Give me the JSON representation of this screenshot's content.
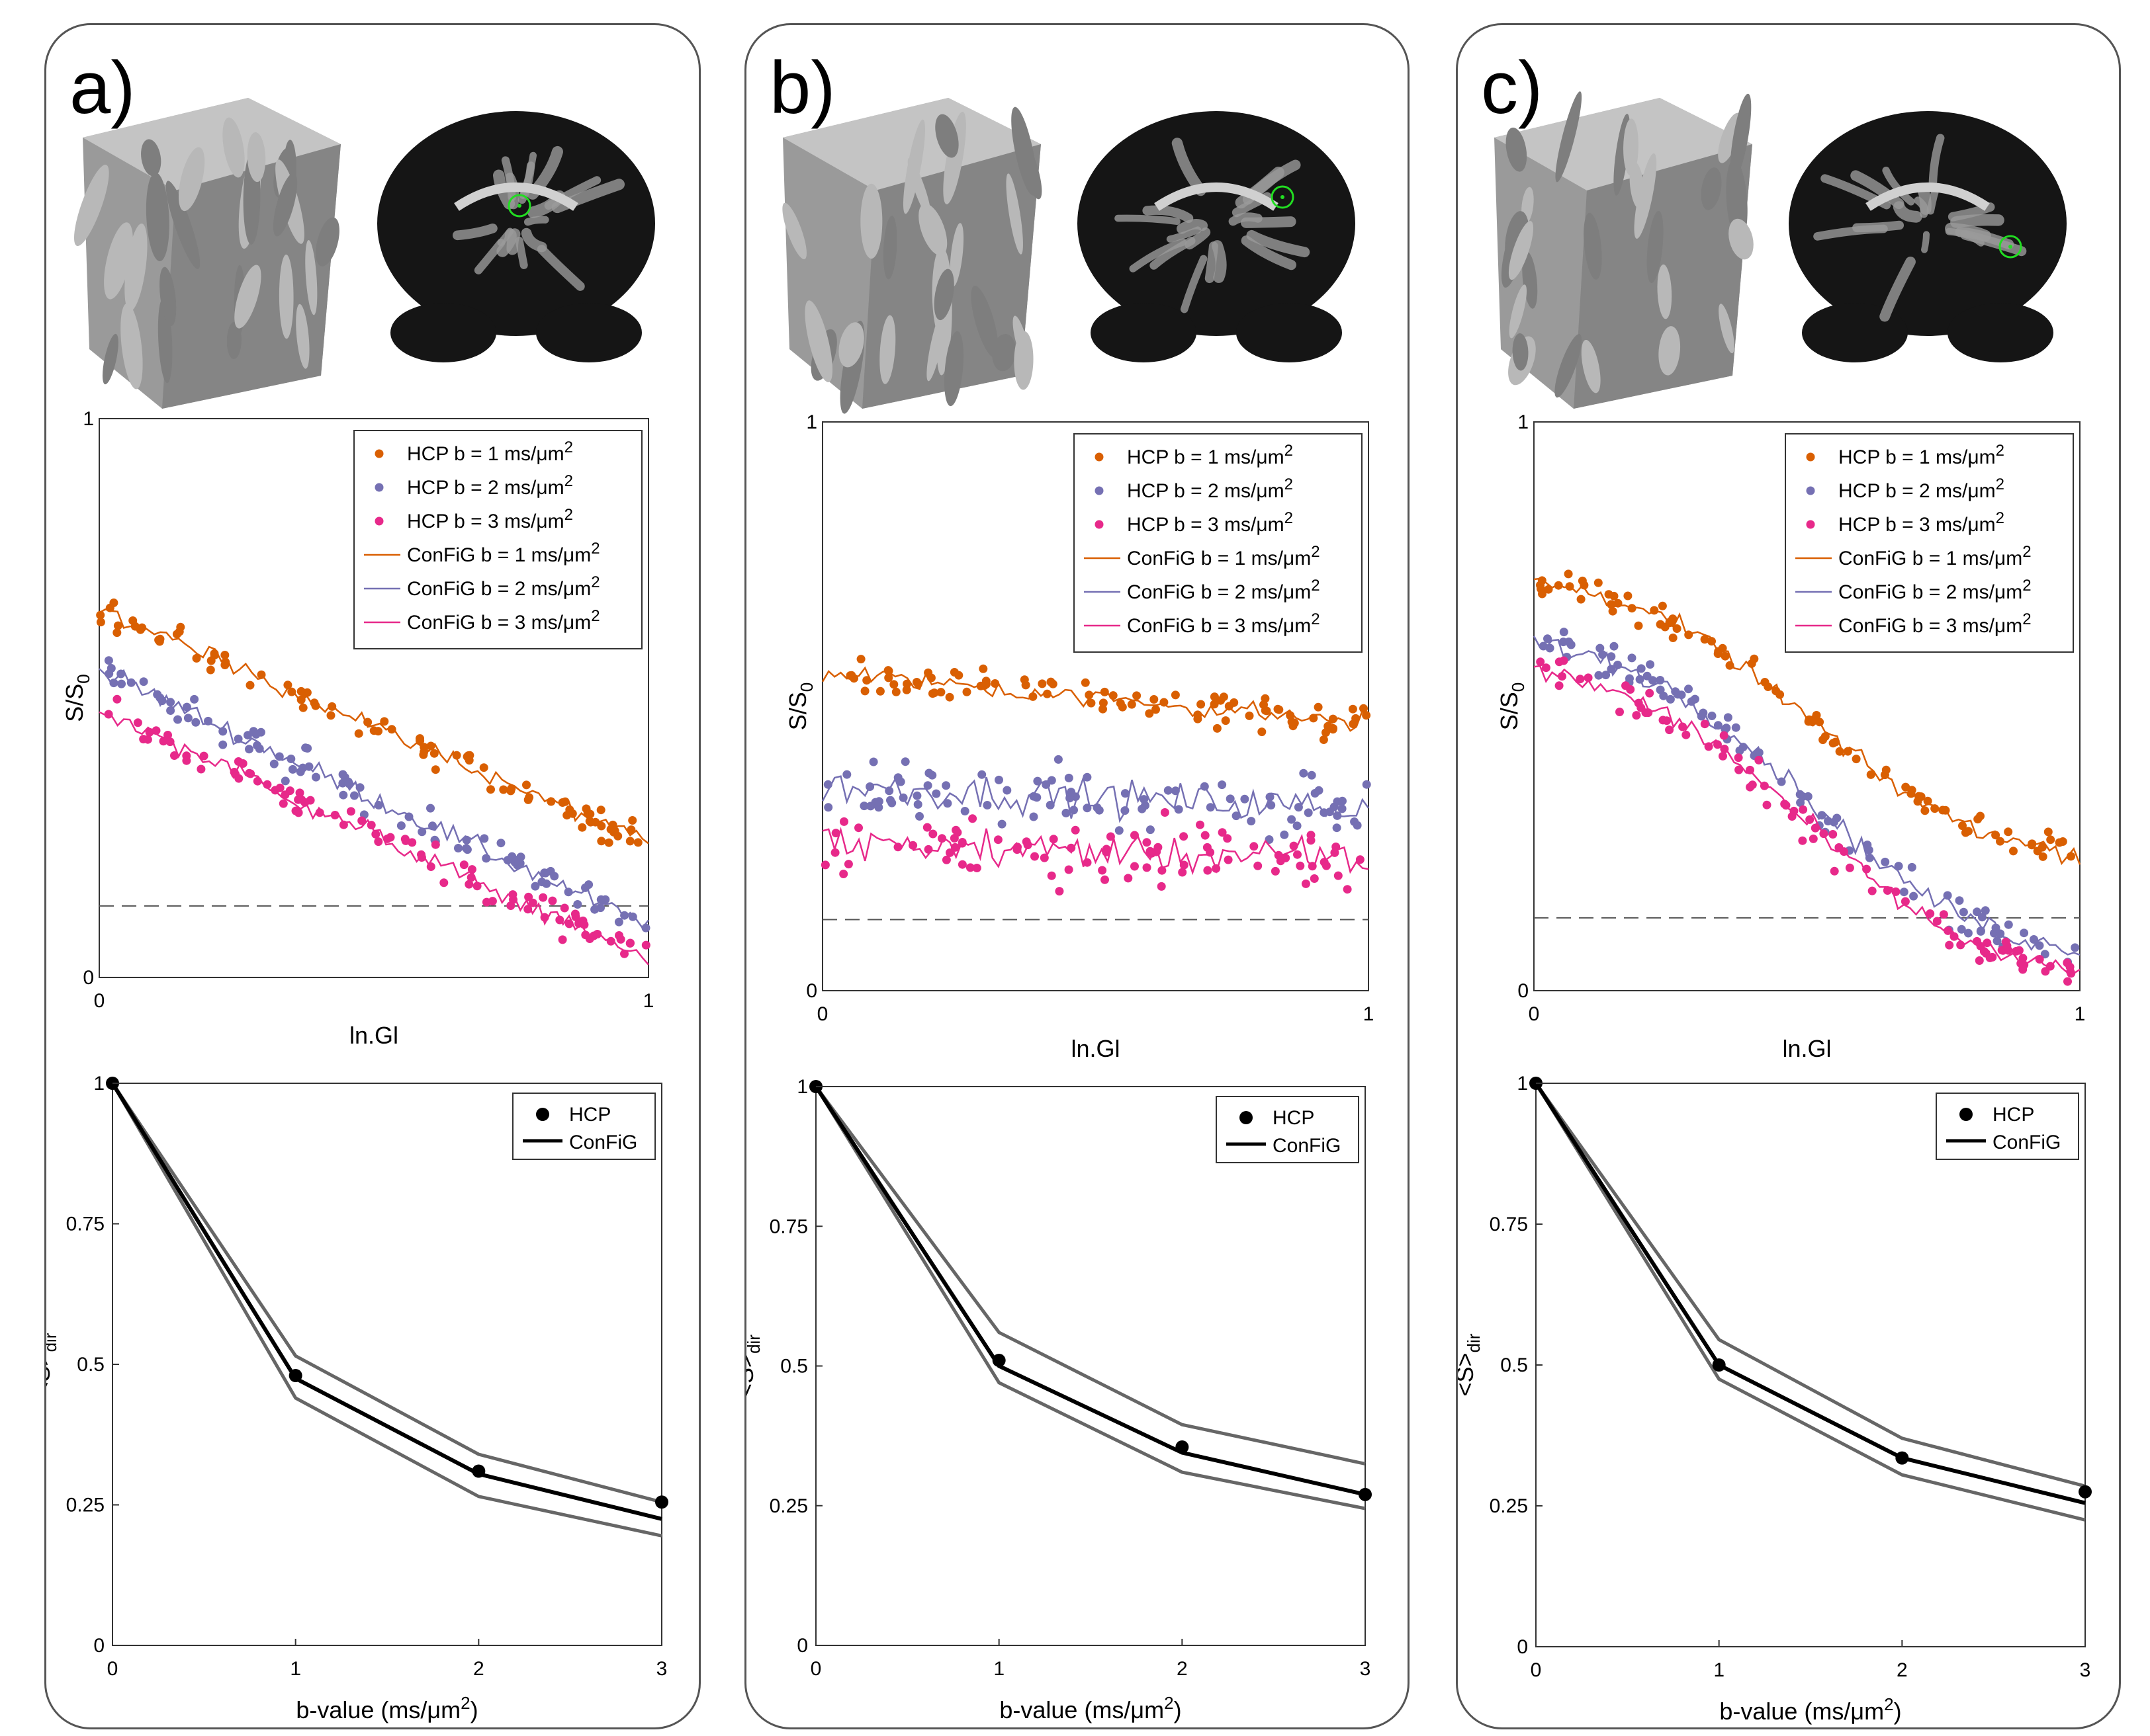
{
  "colors": {
    "orange": "#d95f02",
    "purple": "#7570b3",
    "pink": "#e7298a",
    "black": "#000000",
    "gray": "#666666"
  },
  "panels": [
    {
      "label": "a)",
      "icons": [
        "fiber-substrate-icon",
        "coronal-brain-slice-icon"
      ],
      "signal_scatter": {
        "ylabel": "S/S0",
        "xlabel": "ln.Gl",
        "xtick_left": "0",
        "xtick_right": "1",
        "ytick_bottom": "0",
        "ytick_top": "1",
        "noise_floor": 0.128,
        "legend": [
          "HCP b = 1 ms/μm²",
          "HCP b = 2 ms/μm²",
          "HCP b = 3 ms/μm²",
          "ConFiG b = 1 ms/μm²",
          "ConFiG b = 2 ms/μm²",
          "ConFiG b = 3 ms/μm²"
        ],
        "curves": {
          "b1": [
            0.66,
            0.24
          ],
          "b2": [
            0.55,
            0.09
          ],
          "b3": [
            0.48,
            0.03
          ]
        },
        "shape": "decay"
      },
      "mean_signal": {
        "ylabel": "<S>dir",
        "xlabel": "b-value (ms/μm²)",
        "xticks": [
          "0",
          "1",
          "2",
          "3"
        ],
        "yticks": [
          "0",
          "0.25",
          "0.5",
          "0.75",
          "1"
        ],
        "legend": [
          "HCP",
          "ConFiG"
        ],
        "hcp": [
          1.0,
          0.48,
          0.31,
          0.255
        ],
        "config": [
          1.0,
          0.475,
          0.305,
          0.225
        ],
        "upper": [
          1.0,
          0.515,
          0.34,
          0.255
        ],
        "lower": [
          1.0,
          0.44,
          0.265,
          0.195
        ]
      }
    },
    {
      "label": "b)",
      "icons": [
        "fiber-substrate-icon",
        "coronal-brain-slice-icon"
      ],
      "signal_scatter": {
        "ylabel": "S/S0",
        "xlabel": "ln.Gl",
        "xtick_left": "0",
        "xtick_right": "1",
        "ytick_bottom": "0",
        "ytick_top": "1",
        "noise_floor": 0.125,
        "legend": [
          "HCP b = 1 ms/μm²",
          "HCP b = 2 ms/μm²",
          "HCP b = 3 ms/μm²",
          "ConFiG b = 1 ms/μm²",
          "ConFiG b = 2 ms/μm²",
          "ConFiG b = 3 ms/μm²"
        ],
        "curves": {
          "b1": [
            0.56,
            0.47
          ],
          "b2": [
            0.36,
            0.32
          ],
          "b3": [
            0.26,
            0.23
          ]
        },
        "shape": "flat"
      },
      "mean_signal": {
        "ylabel": "<S>dir",
        "xlabel": "b-value (ms/μm²)",
        "xticks": [
          "0",
          "1",
          "2",
          "3"
        ],
        "yticks": [
          "0",
          "0.25",
          "0.5",
          "0.75",
          "1"
        ],
        "legend": [
          "HCP",
          "ConFiG"
        ],
        "hcp": [
          1.0,
          0.51,
          0.355,
          0.27
        ],
        "config": [
          1.0,
          0.5,
          0.345,
          0.27
        ],
        "upper": [
          1.0,
          0.56,
          0.395,
          0.325
        ],
        "lower": [
          1.0,
          0.47,
          0.31,
          0.245
        ]
      }
    },
    {
      "label": "c)",
      "icons": [
        "fiber-substrate-icon",
        "coronal-brain-slice-icon"
      ],
      "signal_scatter": {
        "ylabel": "S/S0",
        "xlabel": "ln.Gl",
        "xtick_left": "0",
        "xtick_right": "1",
        "ytick_bottom": "0",
        "ytick_top": "1",
        "noise_floor": 0.128,
        "legend": [
          "HCP b = 1 ms/μm²",
          "HCP b = 2 ms/μm²",
          "HCP b = 3 ms/μm²",
          "ConFiG b = 1 ms/μm²",
          "ConFiG b = 2 ms/μm²",
          "ConFiG b = 3 ms/μm²"
        ],
        "curves": {
          "b1": [
            0.72,
            0.24
          ],
          "b2": [
            0.61,
            0.07
          ],
          "b3": [
            0.56,
            0.03
          ]
        },
        "shape": "sigmoid"
      },
      "mean_signal": {
        "ylabel": "<S>dir",
        "xlabel": "b-value (ms/μm²)",
        "xticks": [
          "0",
          "1",
          "2",
          "3"
        ],
        "yticks": [
          "0",
          "0.25",
          "0.5",
          "0.75",
          "1"
        ],
        "legend": [
          "HCP",
          "ConFiG"
        ],
        "hcp": [
          1.0,
          0.5,
          0.335,
          0.275
        ],
        "config": [
          1.0,
          0.5,
          0.335,
          0.255
        ],
        "upper": [
          1.0,
          0.545,
          0.37,
          0.285
        ],
        "lower": [
          1.0,
          0.475,
          0.305,
          0.225
        ]
      }
    }
  ],
  "chart_data": [
    {
      "type": "scatter",
      "panel": "a)",
      "xlabel": "ln.Gl",
      "ylabel": "S/S0",
      "xlim": [
        0,
        1
      ],
      "ylim": [
        0,
        1
      ],
      "series": [
        {
          "name": "HCP b = 1 ms/μm²"
        },
        {
          "name": "HCP b = 2 ms/μm²"
        },
        {
          "name": "HCP b = 3 ms/μm²"
        },
        {
          "name": "ConFiG b = 1 ms/μm²",
          "x": [
            0,
            1
          ],
          "values": [
            0.66,
            0.24
          ]
        },
        {
          "name": "ConFiG b = 2 ms/μm²",
          "x": [
            0,
            1
          ],
          "values": [
            0.55,
            0.09
          ]
        },
        {
          "name": "ConFiG b = 3 ms/μm²",
          "x": [
            0,
            1
          ],
          "values": [
            0.48,
            0.03
          ]
        }
      ]
    },
    {
      "type": "line",
      "panel": "a)",
      "xlabel": "b-value (ms/μm²)",
      "ylabel": "<S>dir",
      "x": [
        0,
        1,
        2,
        3
      ],
      "ylim": [
        0,
        1
      ],
      "series": [
        {
          "name": "HCP",
          "values": [
            1.0,
            0.48,
            0.31,
            0.255
          ]
        },
        {
          "name": "ConFiG",
          "values": [
            1.0,
            0.475,
            0.305,
            0.225
          ]
        }
      ]
    },
    {
      "type": "scatter",
      "panel": "b)",
      "xlabel": "ln.Gl",
      "ylabel": "S/S0",
      "xlim": [
        0,
        1
      ],
      "ylim": [
        0,
        1
      ],
      "series": [
        {
          "name": "HCP b = 1 ms/μm²"
        },
        {
          "name": "HCP b = 2 ms/μm²"
        },
        {
          "name": "HCP b = 3 ms/μm²"
        },
        {
          "name": "ConFiG b = 1 ms/μm²",
          "x": [
            0,
            1
          ],
          "values": [
            0.56,
            0.47
          ]
        },
        {
          "name": "ConFiG b = 2 ms/μm²",
          "x": [
            0,
            1
          ],
          "values": [
            0.36,
            0.32
          ]
        },
        {
          "name": "ConFiG b = 3 ms/μm²",
          "x": [
            0,
            1
          ],
          "values": [
            0.26,
            0.23
          ]
        }
      ]
    },
    {
      "type": "line",
      "panel": "b)",
      "xlabel": "b-value (ms/μm²)",
      "ylabel": "<S>dir",
      "x": [
        0,
        1,
        2,
        3
      ],
      "ylim": [
        0,
        1
      ],
      "series": [
        {
          "name": "HCP",
          "values": [
            1.0,
            0.51,
            0.355,
            0.27
          ]
        },
        {
          "name": "ConFiG",
          "values": [
            1.0,
            0.5,
            0.345,
            0.27
          ]
        }
      ]
    },
    {
      "type": "scatter",
      "panel": "c)",
      "xlabel": "ln.Gl",
      "ylabel": "S/S0",
      "xlim": [
        0,
        1
      ],
      "ylim": [
        0,
        1
      ],
      "series": [
        {
          "name": "HCP b = 1 ms/μm²"
        },
        {
          "name": "HCP b = 2 ms/μm²"
        },
        {
          "name": "HCP b = 3 ms/μm²"
        },
        {
          "name": "ConFiG b = 1 ms/μm²",
          "x": [
            0,
            1
          ],
          "values": [
            0.72,
            0.24
          ]
        },
        {
          "name": "ConFiG b = 2 ms/μm²",
          "x": [
            0,
            1
          ],
          "values": [
            0.61,
            0.07
          ]
        },
        {
          "name": "ConFiG b = 3 ms/μm²",
          "x": [
            0,
            1
          ],
          "values": [
            0.56,
            0.03
          ]
        }
      ]
    },
    {
      "type": "line",
      "panel": "c)",
      "xlabel": "b-value (ms/μm²)",
      "ylabel": "<S>dir",
      "x": [
        0,
        1,
        2,
        3
      ],
      "ylim": [
        0,
        1
      ],
      "series": [
        {
          "name": "HCP",
          "values": [
            1.0,
            0.5,
            0.335,
            0.275
          ]
        },
        {
          "name": "ConFiG",
          "values": [
            1.0,
            0.5,
            0.335,
            0.255
          ]
        }
      ]
    }
  ]
}
